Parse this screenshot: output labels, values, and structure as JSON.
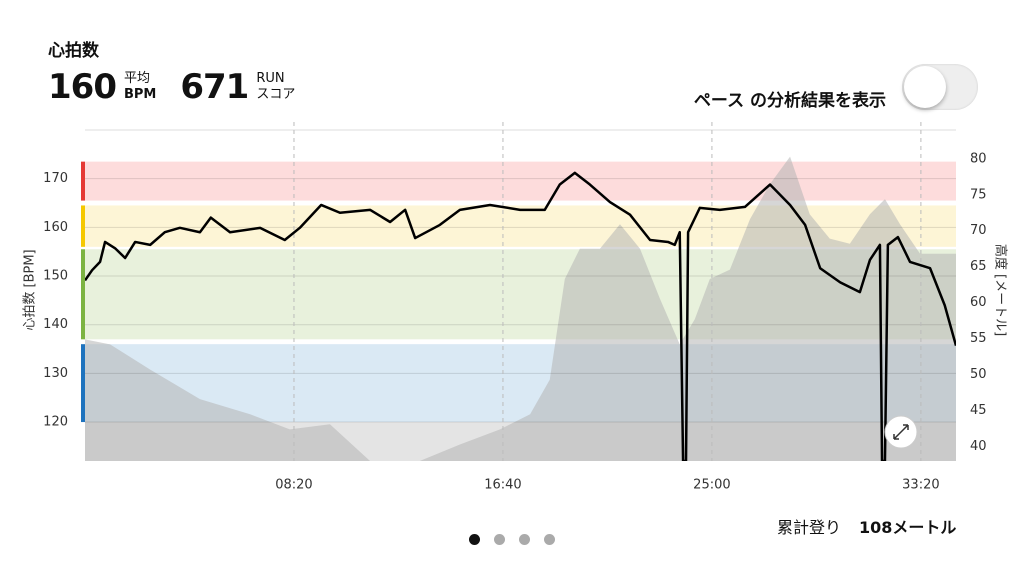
{
  "header": {
    "title": "心拍数",
    "avg_value": "160",
    "avg_label_top": "平均",
    "avg_label_bottom": "BPM",
    "score_value": "671",
    "score_label_top": "RUN",
    "score_label_bottom": "スコア"
  },
  "toggle_label": "ペース の分析結果を表示",
  "footer": {
    "label": "累計登り",
    "value": "108メートル"
  },
  "chart_data": {
    "type": "line",
    "ylabel": "心拍数 [BPM]",
    "y2label": "高度 [メートル]",
    "xlim": [
      0,
      2084
    ],
    "ylim": [
      112,
      180
    ],
    "y2lim": [
      38,
      84
    ],
    "xticks": [
      {
        "value": 500,
        "label": "08:20"
      },
      {
        "value": 1000,
        "label": "16:40"
      },
      {
        "value": 1500,
        "label": "25:00"
      },
      {
        "value": 2000,
        "label": "33:20"
      }
    ],
    "yticks": [
      120,
      130,
      140,
      150,
      160,
      170
    ],
    "y2ticks": [
      40,
      45,
      50,
      55,
      60,
      65,
      70,
      75,
      80
    ],
    "zones": [
      {
        "from": 165.5,
        "to": 173.5,
        "color": "#fddcdc",
        "accent": "#e53935"
      },
      {
        "from": 156,
        "to": 164.5,
        "color": "#fdf5d6",
        "accent": "#f5c800"
      },
      {
        "from": 137,
        "to": 155.5,
        "color": "#e8f1dc",
        "accent": "#7cb342"
      },
      {
        "from": 120,
        "to": 136,
        "color": "#dae9f4",
        "accent": "#1e73be"
      },
      {
        "from": 112,
        "to": 120,
        "color": "#e4e4e4"
      }
    ],
    "heart_rate": {
      "color": "#000000",
      "x": [
        0,
        17,
        36,
        48,
        72,
        96,
        120,
        156,
        191,
        227,
        275,
        301,
        347,
        419,
        478,
        514,
        565,
        610,
        682,
        730,
        766,
        790,
        849,
        897,
        969,
        1041,
        1100,
        1136,
        1172,
        1208,
        1256,
        1304,
        1352,
        1395,
        1411,
        1423,
        1431,
        1438,
        1443,
        1471,
        1519,
        1579,
        1639,
        1687,
        1723,
        1759,
        1807,
        1854,
        1878,
        1902,
        1907,
        1914,
        1921,
        1945,
        1974,
        2022,
        2057,
        2084
      ],
      "values": [
        149.1,
        151.2,
        152.9,
        157,
        155.7,
        153.7,
        157,
        156.4,
        159,
        159.9,
        159,
        162,
        159,
        159.9,
        157.4,
        159.9,
        164.6,
        163,
        163.6,
        161.1,
        163.6,
        157.8,
        160.5,
        163.6,
        164.6,
        163.6,
        163.6,
        168.8,
        171.2,
        168.8,
        165.2,
        162.6,
        157.4,
        157,
        156.4,
        159,
        112,
        112,
        159,
        164,
        163.6,
        164.2,
        168.8,
        164.6,
        160.5,
        151.6,
        148.7,
        146.7,
        153.3,
        156.4,
        112,
        112,
        156.4,
        158,
        152.9,
        151.6,
        144,
        135.7
      ]
    },
    "altitude": {
      "color": "#b4b4b4",
      "axis": "y2",
      "x": [
        0,
        60,
        156,
        275,
        395,
        490,
        586,
        682,
        801,
        897,
        993,
        1065,
        1112,
        1148,
        1184,
        1232,
        1280,
        1328,
        1376,
        1423,
        1459,
        1495,
        1543,
        1591,
        1639,
        1687,
        1734,
        1782,
        1830,
        1878,
        1914,
        1950,
        1998,
        2045,
        2084
      ],
      "values": [
        54.9,
        54.2,
        50.7,
        46.6,
        44.5,
        42.4,
        43.1,
        38,
        38,
        40.3,
        42.4,
        44.5,
        49.3,
        63.3,
        67.5,
        67.5,
        70.9,
        67.5,
        60.5,
        54.2,
        57.7,
        63.3,
        64.6,
        71.6,
        76.5,
        80.3,
        72.3,
        68.9,
        68.2,
        72.3,
        74.4,
        70.9,
        66.8,
        66.8,
        66.8
      ]
    }
  }
}
